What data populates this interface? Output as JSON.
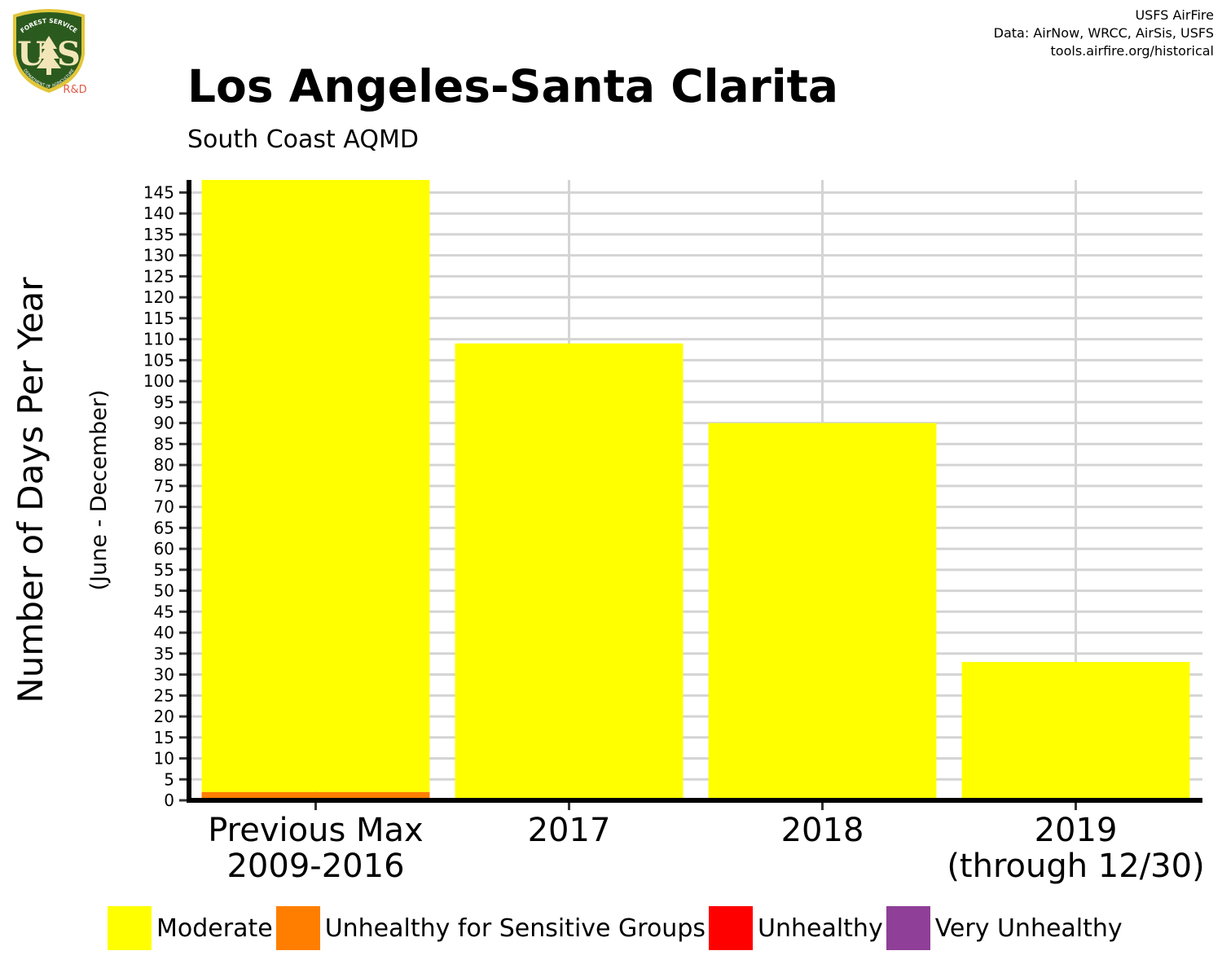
{
  "header": {
    "title": "Los Angeles-Santa Clarita",
    "subtitle": "South Coast AQMD",
    "credits": [
      "USFS AirFire",
      "Data: AirNow, WRCC, AirSis, USFS",
      "tools.airfire.org/historical"
    ]
  },
  "logo": {
    "top_text": "FOREST SERVICE",
    "main_text": "U S",
    "bottom_text": "DEPARTMENT OF AGRICULTURE",
    "rd_text": "R&D",
    "colors": {
      "shield": "#2b5a1e",
      "border": "#e2c63a",
      "rd": "#e05a4a"
    }
  },
  "chart_data": {
    "type": "bar",
    "stacked": true,
    "ylabel": "Number of Days Per Year",
    "ylabel_sub": "(June - December)",
    "ylim": [
      0,
      148
    ],
    "yticks": [
      0,
      5,
      10,
      15,
      20,
      25,
      30,
      35,
      40,
      45,
      50,
      55,
      60,
      65,
      70,
      75,
      80,
      85,
      90,
      95,
      100,
      105,
      110,
      115,
      120,
      125,
      130,
      135,
      140,
      145
    ],
    "grid": true,
    "categories": [
      [
        "Previous Max",
        "2009-2016"
      ],
      [
        "2017"
      ],
      [
        "2018"
      ],
      [
        "2019",
        "(through 12/30)"
      ]
    ],
    "series": [
      {
        "name": "Unhealthy for Sensitive Groups",
        "color": "#ff7e00",
        "values": [
          2,
          0,
          0,
          0
        ]
      },
      {
        "name": "Moderate",
        "color": "#ffff00",
        "values": [
          146,
          109,
          90,
          33
        ]
      }
    ],
    "legend": {
      "placement": "bottom",
      "items": [
        {
          "name": "Moderate",
          "color": "#ffff00"
        },
        {
          "name": "Unhealthy for Sensitive Groups",
          "color": "#ff7e00"
        },
        {
          "name": "Unhealthy",
          "color": "#ff0000"
        },
        {
          "name": "Very Unhealthy",
          "color": "#8f3f97"
        }
      ]
    }
  }
}
